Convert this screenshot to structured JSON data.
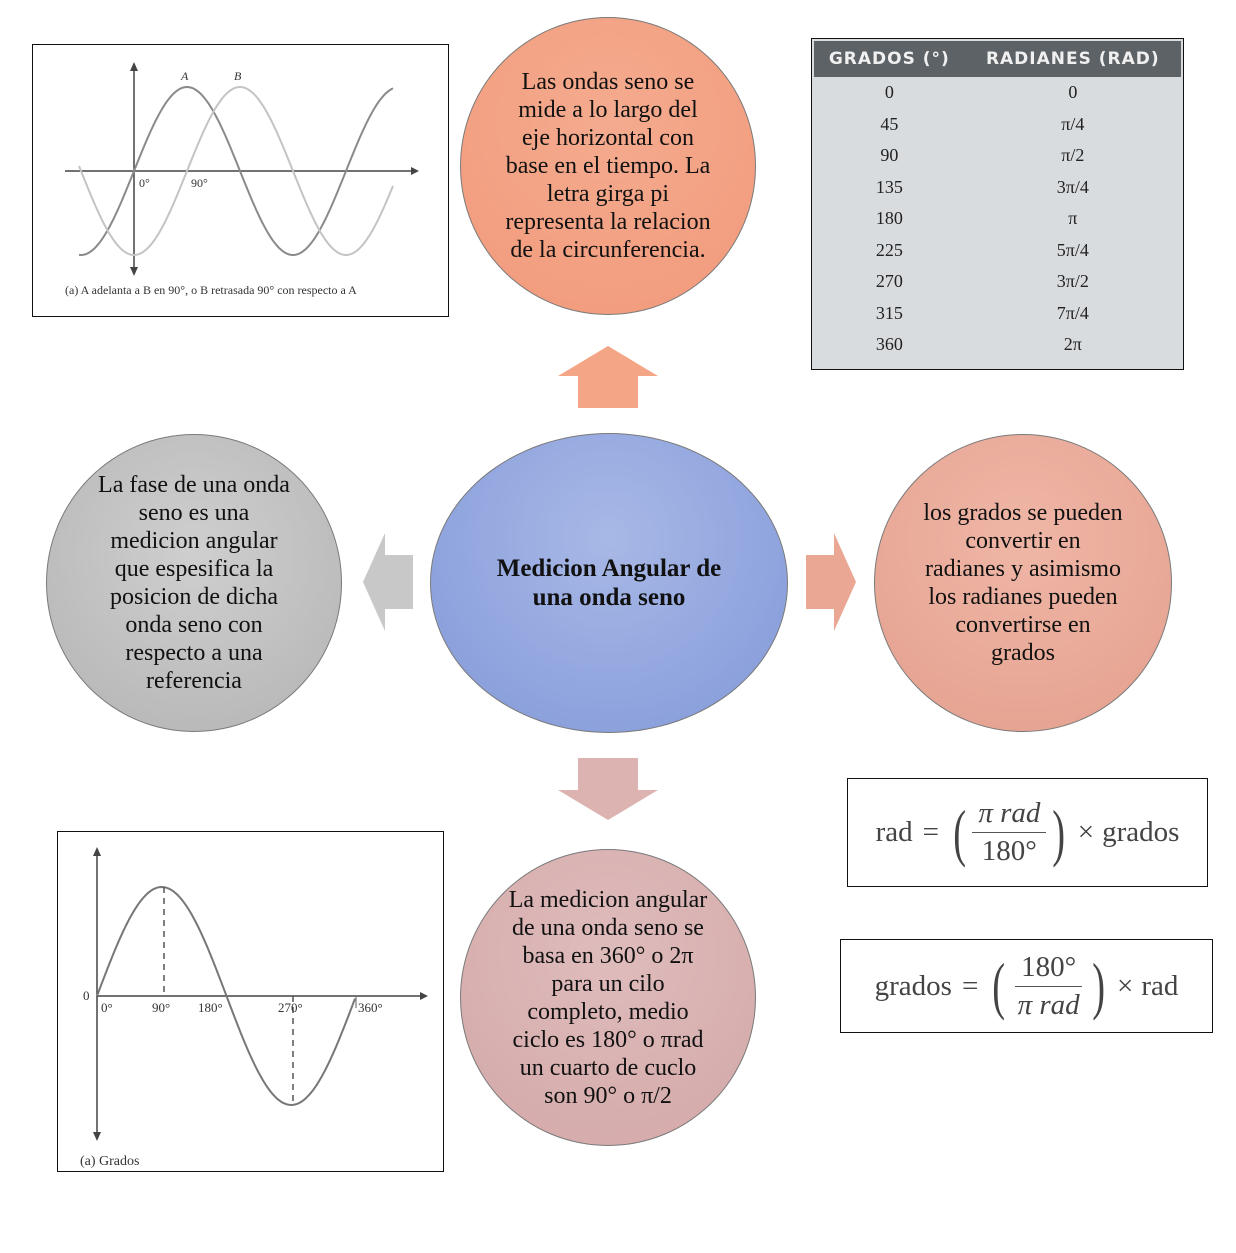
{
  "center_node": {
    "label": "Medicion Angular de una onda seno"
  },
  "nodes": {
    "top": "Las ondas seno se mide a lo largo del eje horizontal con base en el tiempo. La letra girga pi representa la relacion de la circunferencia.",
    "left": "La fase de una onda seno es una medicion angular que espesifica la posicion de dicha onda seno con respecto a una referencia",
    "right": "los grados se pueden convertir en radianes y asimismo los radianes pueden convertirse en grados",
    "bottom": "La medicion angular de una onda seno se basa en 360° o 2π para un cilo completo, medio ciclo es 180° o πrad un cuarto de cuclo son 90° o π/2"
  },
  "phase_figure": {
    "wave_labels": [
      "A",
      "B"
    ],
    "tick_labels": [
      "0°",
      "90°"
    ],
    "caption": "(a) A adelanta a B en 90°, o B retrasada 90° con respecto a A"
  },
  "degrees_figure": {
    "y_label": "0",
    "tick_labels": [
      "0°",
      "90°",
      "180°",
      "270°",
      "360°"
    ],
    "caption": "(a) Grados"
  },
  "conversion_table": {
    "headers": [
      "GRADOS (°)",
      "RADIANES (RAD)"
    ],
    "rows": [
      [
        "0",
        "0"
      ],
      [
        "45",
        "π/4"
      ],
      [
        "90",
        "π/2"
      ],
      [
        "135",
        "3π/4"
      ],
      [
        "180",
        "π"
      ],
      [
        "225",
        "5π/4"
      ],
      [
        "270",
        "3π/2"
      ],
      [
        "315",
        "7π/4"
      ],
      [
        "360",
        "2π"
      ]
    ]
  },
  "formulas": {
    "rad": {
      "lhs": "rad",
      "eq": "=",
      "num": "π rad",
      "den": "180°",
      "times": "×",
      "rhs": "grados"
    },
    "grados": {
      "lhs": "grados",
      "eq": "=",
      "num": "180°",
      "den": "π rad",
      "times": "×",
      "rhs": "rad"
    }
  },
  "colors": {
    "top_node": "#f4a68a",
    "center_node": "#8ea3dc",
    "left_node": "#bdbdbd",
    "right_node": "#e8aa98",
    "bottom_node": "#d9b1b1",
    "arrow_up": "#f4a585",
    "arrow_left": "#c8c8c8",
    "arrow_right": "#eaa894",
    "arrow_down": "#ddb3b1",
    "table_header": "#5d6267",
    "table_body": "#d9dcdf"
  }
}
